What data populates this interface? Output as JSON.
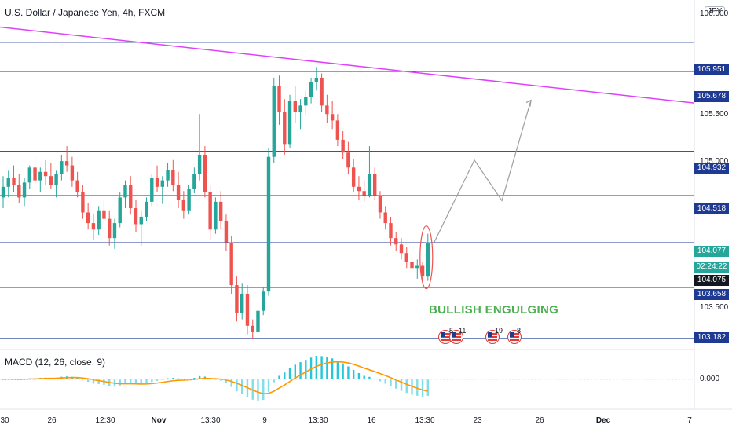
{
  "header": {
    "title": "U.S. Dollar / Japanese Yen, 4h, FXCM",
    "currency_badge": "JPY"
  },
  "price_axis": {
    "ticks": [
      "106.000",
      "105.500",
      "105.000",
      "103.500"
    ],
    "labels": [
      {
        "text": "105.951",
        "color": "#1f3a93"
      },
      {
        "text": "105.678",
        "color": "#1f3a93"
      },
      {
        "text": "104.932",
        "color": "#1f3a93"
      },
      {
        "text": "104.518",
        "color": "#1f3a93"
      },
      {
        "text": "104.077",
        "color": "#26a69a"
      },
      {
        "text": "02:24:22",
        "color": "#26a69a"
      },
      {
        "text": "104.075",
        "color": "#131722"
      },
      {
        "text": "103.658",
        "color": "#1f3a93"
      },
      {
        "text": "103.182",
        "color": "#1f3a93"
      }
    ],
    "macd_tick": "0.000"
  },
  "time_axis": {
    "ticks": [
      {
        "text": "30",
        "bold": false
      },
      {
        "text": "26",
        "bold": false
      },
      {
        "text": "12:30",
        "bold": false
      },
      {
        "text": "Nov",
        "bold": true
      },
      {
        "text": "13:30",
        "bold": false
      },
      {
        "text": "9",
        "bold": false
      },
      {
        "text": "13:30",
        "bold": false
      },
      {
        "text": "16",
        "bold": false
      },
      {
        "text": "13:30",
        "bold": false
      },
      {
        "text": "23",
        "bold": false
      },
      {
        "text": "26",
        "bold": false
      },
      {
        "text": "Dec",
        "bold": true
      },
      {
        "text": "7",
        "bold": false
      }
    ]
  },
  "indicator": {
    "label": "MACD (12, 26, close, 9)"
  },
  "annotation": {
    "pattern_text": "BULLISH ENGULGING"
  },
  "events": [
    {
      "count": "5",
      "extra": "11"
    },
    {
      "count": "19",
      "extra": ""
    },
    {
      "count": "8",
      "extra": ""
    }
  ],
  "colors": {
    "up": "#26a69a",
    "down": "#ef5350",
    "level_line": "#1f3a93",
    "trendline": "#e040fb",
    "projection": "#9e9e9e",
    "highlight": "#ef5350",
    "signal": "#ff9800",
    "macd_hist_up": "#26c6da",
    "macd_hist_down": "#80deea",
    "annotation_text": "#4caf50"
  },
  "chart_data": {
    "type": "candlestick",
    "symbol": "U.S. Dollar / Japanese Yen",
    "timeframe": "4h",
    "y_range": [
      103.1,
      106.2
    ],
    "horizontal_levels": [
      105.951,
      105.678,
      104.932,
      104.518,
      104.077,
      103.658,
      103.182
    ],
    "trendline": {
      "from": {
        "bar": 0,
        "price": 106.09
      },
      "to": {
        "bar": 140,
        "price": 105.33
      }
    },
    "projection": [
      104.08,
      104.85,
      104.47,
      105.41
    ],
    "ohlc": [
      [
        104.5,
        104.7,
        104.4,
        104.6
      ],
      [
        104.6,
        104.75,
        104.5,
        104.68
      ],
      [
        104.68,
        104.8,
        104.55,
        104.62
      ],
      [
        104.62,
        104.72,
        104.45,
        104.5
      ],
      [
        104.5,
        104.68,
        104.42,
        104.64
      ],
      [
        104.64,
        104.8,
        104.58,
        104.78
      ],
      [
        104.78,
        104.88,
        104.6,
        104.66
      ],
      [
        104.66,
        104.78,
        104.55,
        104.74
      ],
      [
        104.74,
        104.85,
        104.62,
        104.7
      ],
      [
        104.7,
        104.82,
        104.58,
        104.62
      ],
      [
        104.62,
        104.75,
        104.5,
        104.72
      ],
      [
        104.72,
        104.9,
        104.66,
        104.84
      ],
      [
        104.84,
        104.98,
        104.74,
        104.8
      ],
      [
        104.8,
        104.88,
        104.6,
        104.66
      ],
      [
        104.66,
        104.74,
        104.5,
        104.55
      ],
      [
        104.55,
        104.62,
        104.3,
        104.36
      ],
      [
        104.36,
        104.45,
        104.2,
        104.26
      ],
      [
        104.26,
        104.35,
        104.1,
        104.2
      ],
      [
        104.2,
        104.42,
        104.15,
        104.38
      ],
      [
        104.38,
        104.48,
        104.25,
        104.3
      ],
      [
        104.3,
        104.38,
        104.05,
        104.12
      ],
      [
        104.12,
        104.3,
        104.02,
        104.26
      ],
      [
        104.26,
        104.55,
        104.22,
        104.5
      ],
      [
        104.5,
        104.66,
        104.4,
        104.62
      ],
      [
        104.62,
        104.7,
        104.34,
        104.4
      ],
      [
        104.4,
        104.48,
        104.18,
        104.25
      ],
      [
        104.25,
        104.38,
        104.05,
        104.32
      ],
      [
        104.32,
        104.5,
        104.28,
        104.46
      ],
      [
        104.46,
        104.72,
        104.42,
        104.68
      ],
      [
        104.68,
        104.8,
        104.55,
        104.6
      ],
      [
        104.6,
        104.7,
        104.44,
        104.66
      ],
      [
        104.66,
        104.82,
        104.6,
        104.76
      ],
      [
        104.76,
        104.85,
        104.56,
        104.62
      ],
      [
        104.62,
        104.74,
        104.4,
        104.48
      ],
      [
        104.48,
        104.56,
        104.3,
        104.38
      ],
      [
        104.38,
        104.62,
        104.34,
        104.58
      ],
      [
        104.58,
        104.78,
        104.54,
        104.72
      ],
      [
        104.72,
        105.28,
        104.66,
        104.9
      ],
      [
        104.9,
        104.98,
        104.5,
        104.55
      ],
      [
        104.55,
        104.62,
        104.1,
        104.2
      ],
      [
        104.2,
        104.5,
        104.16,
        104.46
      ],
      [
        104.46,
        104.56,
        104.2,
        104.28
      ],
      [
        104.28,
        104.34,
        104.0,
        104.08
      ],
      [
        104.08,
        104.14,
        103.6,
        103.68
      ],
      [
        103.68,
        103.76,
        103.34,
        103.42
      ],
      [
        103.42,
        103.7,
        103.36,
        103.6
      ],
      [
        103.6,
        103.68,
        103.22,
        103.3
      ],
      [
        103.3,
        103.36,
        103.18,
        103.24
      ],
      [
        103.24,
        103.48,
        103.2,
        103.44
      ],
      [
        103.44,
        103.66,
        103.4,
        103.62
      ],
      [
        103.62,
        104.96,
        103.58,
        104.88
      ],
      [
        104.88,
        105.62,
        104.82,
        105.54
      ],
      [
        105.54,
        105.64,
        105.18,
        105.3
      ],
      [
        105.3,
        105.42,
        104.9,
        105.0
      ],
      [
        105.0,
        105.46,
        104.96,
        105.4
      ],
      [
        105.4,
        105.54,
        105.2,
        105.3
      ],
      [
        105.3,
        105.42,
        105.14,
        105.36
      ],
      [
        105.36,
        105.5,
        105.28,
        105.44
      ],
      [
        105.44,
        105.62,
        105.38,
        105.58
      ],
      [
        105.58,
        105.72,
        105.5,
        105.62
      ],
      [
        105.62,
        105.66,
        105.3,
        105.36
      ],
      [
        105.36,
        105.46,
        105.2,
        105.28
      ],
      [
        105.28,
        105.4,
        105.14,
        105.22
      ],
      [
        105.22,
        105.28,
        104.98,
        105.04
      ],
      [
        105.04,
        105.12,
        104.86,
        104.92
      ],
      [
        104.92,
        105.02,
        104.72,
        104.78
      ],
      [
        104.78,
        104.86,
        104.55,
        104.6
      ],
      [
        104.6,
        104.7,
        104.48,
        104.56
      ],
      [
        104.56,
        104.66,
        104.46,
        104.52
      ],
      [
        104.52,
        104.98,
        104.5,
        104.72
      ],
      [
        104.72,
        104.78,
        104.48,
        104.52
      ],
      [
        104.52,
        104.56,
        104.3,
        104.36
      ],
      [
        104.36,
        104.42,
        104.2,
        104.26
      ],
      [
        104.26,
        104.32,
        104.05,
        104.12
      ],
      [
        104.12,
        104.18,
        104.0,
        104.06
      ],
      [
        104.06,
        104.12,
        103.92,
        103.98
      ],
      [
        103.98,
        104.04,
        103.84,
        103.9
      ],
      [
        103.9,
        103.96,
        103.78,
        103.84
      ],
      [
        103.84,
        103.92,
        103.74,
        103.86
      ],
      [
        103.86,
        103.9,
        103.72,
        103.76
      ],
      [
        103.76,
        104.16,
        103.72,
        104.08
      ]
    ]
  }
}
